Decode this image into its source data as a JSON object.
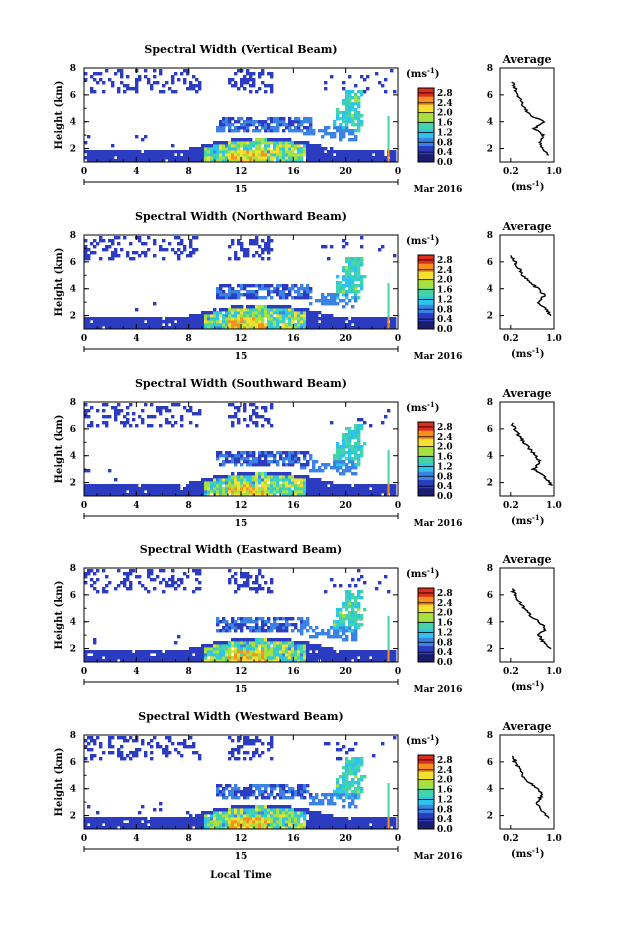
{
  "figure": {
    "xlabel": "Local Time",
    "colorbar": {
      "unit_label": "(ms",
      "unit_exp": "-1",
      "unit_close": ")",
      "ticks": [
        "2.8",
        "2.4",
        "2.0",
        "1.6",
        "1.2",
        "0.8",
        "0.4",
        "0.0"
      ],
      "range": [
        0.0,
        3.0
      ],
      "colormap": [
        "#1c1c6e",
        "#2c3cc0",
        "#3a82e4",
        "#2cc4e8",
        "#44d4a8",
        "#a8e040",
        "#f4e030",
        "#f89020",
        "#e02c1c"
      ]
    },
    "date_label": "Mar 2016",
    "day_label": "15",
    "time_ticks": [
      "0",
      "4",
      "8",
      "12",
      "16",
      "20",
      "0"
    ],
    "height_ticks": [
      "2",
      "4",
      "6",
      "8"
    ],
    "height_label": "Height (km)",
    "avg_xticks": [
      "0.2",
      "1.0"
    ],
    "avg_xlabel": "(ms",
    "avg_xlabel_exp": "-1",
    "avg_xlabel_close": ")",
    "avg_title": "Average"
  },
  "chart_data": [
    {
      "type": "heatmap",
      "title": "Spectral Width (Vertical Beam)",
      "xlabel": "",
      "ylabel": "Height (km)",
      "xlim": [
        0,
        24
      ],
      "ylim": [
        1,
        8
      ],
      "profile": {
        "title": "Average",
        "xlim": [
          0.0,
          1.0
        ],
        "ylim": [
          1,
          8
        ],
        "heights": [
          1.5,
          2.0,
          2.5,
          3.0,
          3.5,
          4.0,
          4.5,
          5.0,
          5.5,
          6.0,
          6.5,
          7.0
        ],
        "values": [
          0.9,
          0.78,
          0.72,
          0.8,
          0.62,
          0.85,
          0.55,
          0.45,
          0.4,
          0.3,
          0.28,
          0.22
        ]
      }
    },
    {
      "type": "heatmap",
      "title": "Spectral Width (Northward Beam)",
      "xlabel": "",
      "ylabel": "Height (km)",
      "xlim": [
        0,
        24
      ],
      "ylim": [
        1,
        8
      ],
      "profile": {
        "title": "Average",
        "xlim": [
          0.0,
          1.0
        ],
        "ylim": [
          1,
          8
        ],
        "heights": [
          2.0,
          2.5,
          3.0,
          3.5,
          4.0,
          4.5,
          5.0,
          5.5,
          6.0,
          6.5
        ],
        "values": [
          0.95,
          0.85,
          0.7,
          0.82,
          0.7,
          0.55,
          0.42,
          0.35,
          0.28,
          0.22
        ]
      }
    },
    {
      "type": "heatmap",
      "title": "Spectral Width (Southward Beam)",
      "xlabel": "",
      "ylabel": "Height (km)",
      "xlim": [
        0,
        24
      ],
      "ylim": [
        1,
        8
      ],
      "profile": {
        "title": "Average",
        "xlim": [
          0.0,
          1.0
        ],
        "ylim": [
          1,
          8
        ],
        "heights": [
          1.8,
          2.5,
          3.0,
          3.5,
          4.0,
          4.5,
          5.0,
          5.5,
          6.0,
          6.5
        ],
        "values": [
          0.95,
          0.8,
          0.62,
          0.75,
          0.65,
          0.55,
          0.45,
          0.35,
          0.28,
          0.22
        ]
      }
    },
    {
      "type": "heatmap",
      "title": "Spectral Width (Eastward Beam)",
      "xlabel": "",
      "ylabel": "Height (km)",
      "xlim": [
        0,
        24
      ],
      "ylim": [
        1,
        8
      ],
      "profile": {
        "title": "Average",
        "xlim": [
          0.0,
          1.0
        ],
        "ylim": [
          1,
          8
        ],
        "heights": [
          2.0,
          2.5,
          3.0,
          3.5,
          4.0,
          4.5,
          5.0,
          5.5,
          6.0,
          6.5
        ],
        "values": [
          0.92,
          0.8,
          0.72,
          0.85,
          0.72,
          0.55,
          0.45,
          0.35,
          0.28,
          0.22
        ]
      }
    },
    {
      "type": "heatmap",
      "title": "Spectral Width (Westward Beam)",
      "xlabel": "Local Time",
      "ylabel": "Height (km)",
      "xlim": [
        0,
        24
      ],
      "ylim": [
        1,
        8
      ],
      "profile": {
        "title": "Average",
        "xlim": [
          0.0,
          1.0
        ],
        "ylim": [
          1,
          8
        ],
        "heights": [
          1.8,
          2.5,
          3.0,
          3.5,
          4.0,
          4.5,
          5.0,
          5.5,
          6.0,
          6.5
        ],
        "values": [
          0.9,
          0.75,
          0.68,
          0.78,
          0.72,
          0.52,
          0.42,
          0.35,
          0.28,
          0.22
        ]
      }
    }
  ]
}
